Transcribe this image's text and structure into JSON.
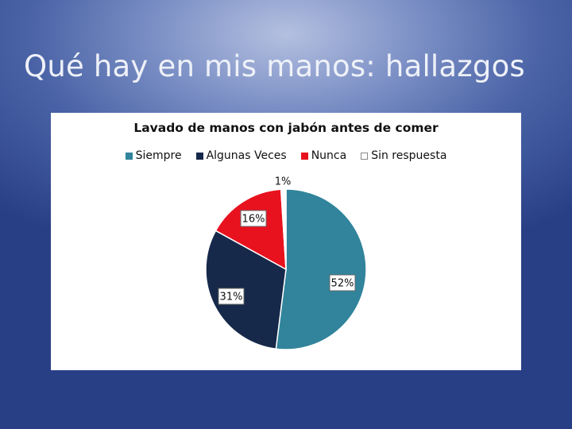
{
  "slide": {
    "title": "Qué hay en mis manos: hallazgos"
  },
  "chart_data": {
    "type": "pie",
    "title": "Lavado de manos con jabón antes de comer",
    "legend_position": "top",
    "categories": [
      "Siempre",
      "Algunas Veces",
      "Nunca",
      "Sin respuesta"
    ],
    "values": [
      52,
      31,
      16,
      1
    ],
    "labels": [
      "52%",
      "31%",
      "16%",
      "1%"
    ],
    "colors": [
      "#31849b",
      "#17294a",
      "#e8121e",
      "#ffffff"
    ],
    "start_angle_deg": 0,
    "direction": "clockwise"
  }
}
